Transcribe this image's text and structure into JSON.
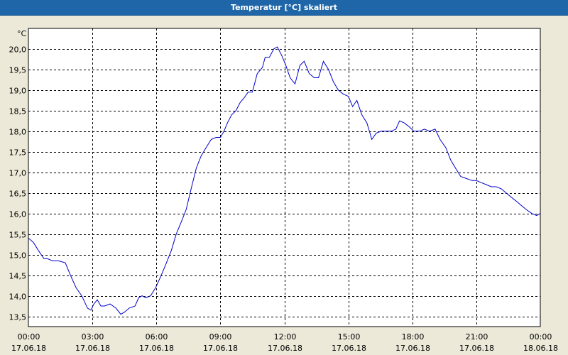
{
  "window": {
    "title": "Temperatur [°C] skaliert"
  },
  "chart_data": {
    "type": "line",
    "title": "Temperatur [°C] skaliert",
    "ylabel": "°C",
    "xlabel": "",
    "x_range_hours": [
      0,
      24
    ],
    "ylim": [
      13.25,
      20.5
    ],
    "grid": true,
    "x_ticks": [
      {
        "hour": 0,
        "time": "00:00",
        "date": "17.06.18"
      },
      {
        "hour": 3,
        "time": "03:00",
        "date": "17.06.18"
      },
      {
        "hour": 6,
        "time": "06:00",
        "date": "17.06.18"
      },
      {
        "hour": 9,
        "time": "09:00",
        "date": "17.06.18"
      },
      {
        "hour": 12,
        "time": "12:00",
        "date": "17.06.18"
      },
      {
        "hour": 15,
        "time": "15:00",
        "date": "17.06.18"
      },
      {
        "hour": 18,
        "time": "18:00",
        "date": "17.06.18"
      },
      {
        "hour": 21,
        "time": "21:00",
        "date": "17.06.18"
      },
      {
        "hour": 24,
        "time": "00:00",
        "date": "18.06.18"
      }
    ],
    "y_ticks": [
      {
        "value": 13.5,
        "label": "13,5"
      },
      {
        "value": 14.0,
        "label": "14,0"
      },
      {
        "value": 14.5,
        "label": "14,5"
      },
      {
        "value": 15.0,
        "label": "15,0"
      },
      {
        "value": 15.5,
        "label": "15,5"
      },
      {
        "value": 16.0,
        "label": "16,0"
      },
      {
        "value": 16.5,
        "label": "16,5"
      },
      {
        "value": 17.0,
        "label": "17,0"
      },
      {
        "value": 17.5,
        "label": "17,5"
      },
      {
        "value": 18.0,
        "label": "18,0"
      },
      {
        "value": 18.5,
        "label": "18,5"
      },
      {
        "value": 19.0,
        "label": "19,0"
      },
      {
        "value": 19.5,
        "label": "19,5"
      },
      {
        "value": 20.0,
        "label": "20,0"
      }
    ],
    "colors": {
      "series": "#0000CC",
      "grid": "#000000",
      "plot_background": "#FFFFFF",
      "title_bar": "#1E66A8"
    },
    "series": [
      {
        "x": [
          0.0,
          0.23,
          0.47,
          0.73,
          0.9,
          1.13,
          1.4,
          1.73,
          1.97,
          2.23,
          2.5,
          2.77,
          2.93,
          3.07,
          3.23,
          3.4,
          3.57,
          3.83,
          4.1,
          4.33,
          4.5,
          4.73,
          5.0,
          5.17,
          5.33,
          5.5,
          5.73,
          5.97,
          6.23,
          6.47,
          6.7,
          6.93,
          7.17,
          7.4,
          7.63,
          7.87,
          8.1,
          8.33,
          8.57,
          8.8,
          9.0,
          9.17,
          9.33,
          9.53,
          9.73,
          9.93,
          10.1,
          10.3,
          10.5,
          10.73,
          10.97,
          11.1,
          11.3,
          11.5,
          11.67,
          11.87,
          12.07,
          12.27,
          12.5,
          12.73,
          12.93,
          13.17,
          13.4,
          13.6,
          13.83,
          14.07,
          14.3,
          14.53,
          14.77,
          15.0,
          15.2,
          15.4,
          15.63,
          15.87,
          16.1,
          16.3,
          16.53,
          16.77,
          17.0,
          17.23,
          17.4,
          17.63,
          17.87,
          18.07,
          18.33,
          18.57,
          18.8,
          19.07,
          19.3,
          19.57,
          19.8,
          20.03,
          20.27,
          20.53,
          20.8,
          21.0,
          21.23,
          21.47,
          21.7,
          21.93,
          22.17,
          22.4,
          22.63,
          22.87,
          23.1,
          23.33,
          23.6,
          23.83,
          24.0
        ],
        "values": [
          15.4,
          15.3,
          15.1,
          14.9,
          14.9,
          14.85,
          14.85,
          14.8,
          14.5,
          14.2,
          14.0,
          13.7,
          13.65,
          13.8,
          13.9,
          13.75,
          13.75,
          13.8,
          13.7,
          13.55,
          13.6,
          13.7,
          13.75,
          13.95,
          14.0,
          13.95,
          14.0,
          14.2,
          14.5,
          14.8,
          15.1,
          15.5,
          15.8,
          16.1,
          16.6,
          17.1,
          17.4,
          17.6,
          17.8,
          17.85,
          17.85,
          18.0,
          18.2,
          18.4,
          18.5,
          18.7,
          18.8,
          18.95,
          18.95,
          19.4,
          19.55,
          19.8,
          19.8,
          20.0,
          20.05,
          19.85,
          19.6,
          19.3,
          19.15,
          19.6,
          19.7,
          19.4,
          19.3,
          19.3,
          19.7,
          19.5,
          19.2,
          19.0,
          18.9,
          18.85,
          18.6,
          18.75,
          18.4,
          18.2,
          17.8,
          17.95,
          18.0,
          18.0,
          18.0,
          18.05,
          18.25,
          18.2,
          18.1,
          18.0,
          18.0,
          18.05,
          18.0,
          18.05,
          17.8,
          17.6,
          17.3,
          17.1,
          16.9,
          16.85,
          16.8,
          16.8,
          16.75,
          16.7,
          16.65,
          16.65,
          16.6,
          16.5,
          16.4,
          16.3,
          16.2,
          16.1,
          16.0,
          15.95,
          16.0
        ]
      }
    ]
  }
}
